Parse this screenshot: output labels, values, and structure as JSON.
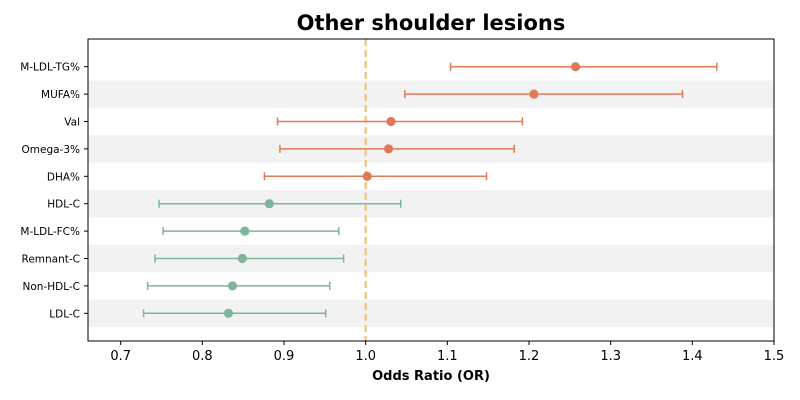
{
  "chart_data": {
    "type": "forest",
    "title": "Other shoulder lesions",
    "xlabel": "Odds Ratio (OR)",
    "ylabel": "",
    "xlim": [
      0.66,
      1.5
    ],
    "xticks": [
      "0.7",
      "0.8",
      "0.9",
      "1.0",
      "1.1",
      "1.2",
      "1.3",
      "1.4",
      "1.5"
    ],
    "reference_line": 1.0,
    "grid": false,
    "colors": {
      "above_reference": "#e07b5a",
      "below_reference": "#7fb59a",
      "reference_line": "#f2c27a",
      "stripe": "#f2f2f2"
    },
    "rows": [
      {
        "label": "M-LDL-TG%",
        "or": 1.257,
        "low": 1.104,
        "high": 1.43
      },
      {
        "label": "MUFA%",
        "or": 1.206,
        "low": 1.048,
        "high": 1.388
      },
      {
        "label": "Val",
        "or": 1.031,
        "low": 0.892,
        "high": 1.192
      },
      {
        "label": "Omega-3%",
        "or": 1.028,
        "low": 0.895,
        "high": 1.182
      },
      {
        "label": "DHA%",
        "or": 1.002,
        "low": 0.876,
        "high": 1.148
      },
      {
        "label": "HDL-C",
        "or": 0.882,
        "low": 0.747,
        "high": 1.043
      },
      {
        "label": "M-LDL-FC%",
        "or": 0.852,
        "low": 0.752,
        "high": 0.967
      },
      {
        "label": "Remnant-C",
        "or": 0.849,
        "low": 0.742,
        "high": 0.973
      },
      {
        "label": "Non-HDL-C",
        "or": 0.837,
        "low": 0.733,
        "high": 0.956
      },
      {
        "label": "LDL-C",
        "or": 0.832,
        "low": 0.728,
        "high": 0.951
      }
    ]
  }
}
